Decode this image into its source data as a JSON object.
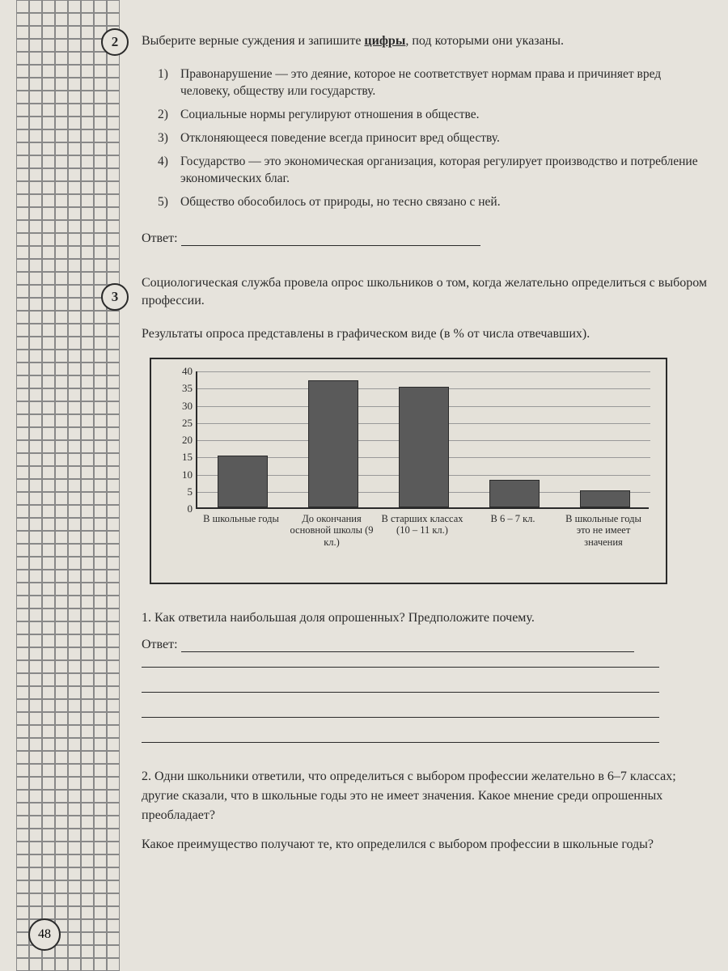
{
  "page_number": "48",
  "question2": {
    "number": "2",
    "instruction_pre": "Выберите верные суждения и запишите ",
    "instruction_bold": "цифры",
    "instruction_post": ", под которыми они указаны.",
    "options": [
      {
        "n": "1)",
        "t": "Правонарушение — это деяние, которое не соответствует нормам права и причиняет вред человеку, обществу или государству."
      },
      {
        "n": "2)",
        "t": "Социальные нормы регулируют отношения в обществе."
      },
      {
        "n": "3)",
        "t": "Отклоняющееся поведение всегда приносит вред обществу."
      },
      {
        "n": "4)",
        "t": "Государство — это экономическая организация, которая регулирует производство и потребление экономических благ."
      },
      {
        "n": "5)",
        "t": "Общество обособилось от природы, но тесно связано с ней."
      }
    ],
    "answer_label": "Ответ:"
  },
  "question3": {
    "number": "3",
    "intro": "Социологическая служба провела опрос школьников о том, когда желательно определиться с выбором профессии.",
    "results_text": "Результаты опроса представлены в графическом виде (в % от числа отвечавших).",
    "chart": {
      "type": "bar",
      "y_ticks": [
        0,
        5,
        10,
        15,
        20,
        25,
        30,
        35,
        40
      ],
      "y_max": 40,
      "bar_color": "#5a5a5a",
      "grid_color": "#999999",
      "axis_color": "#2a2a2a",
      "bars": [
        {
          "label": "В школьные годы",
          "value": 15
        },
        {
          "label": "До окончания основной школы (9 кл.)",
          "value": 37
        },
        {
          "label": "В старших классах (10 – 11 кл.)",
          "value": 35
        },
        {
          "label": "В 6 – 7 кл.",
          "value": 8
        },
        {
          "label": "В школьные годы это не имеет значения",
          "value": 5
        }
      ]
    },
    "sub1": "1. Как ответила наибольшая доля опрошенных? Предположите почему.",
    "answer_label": "Ответ:",
    "blank_lines": 4,
    "sub2_p1": "2. Одни школьники ответили, что определиться с выбором профессии желательно в 6–7 классах; другие сказали, что в школьные годы это не имеет значения. Какое мнение среди опрошенных преобладает?",
    "sub2_p2": "Какое преимущество получают те, кто определился с выбором профессии в школьные годы?"
  }
}
